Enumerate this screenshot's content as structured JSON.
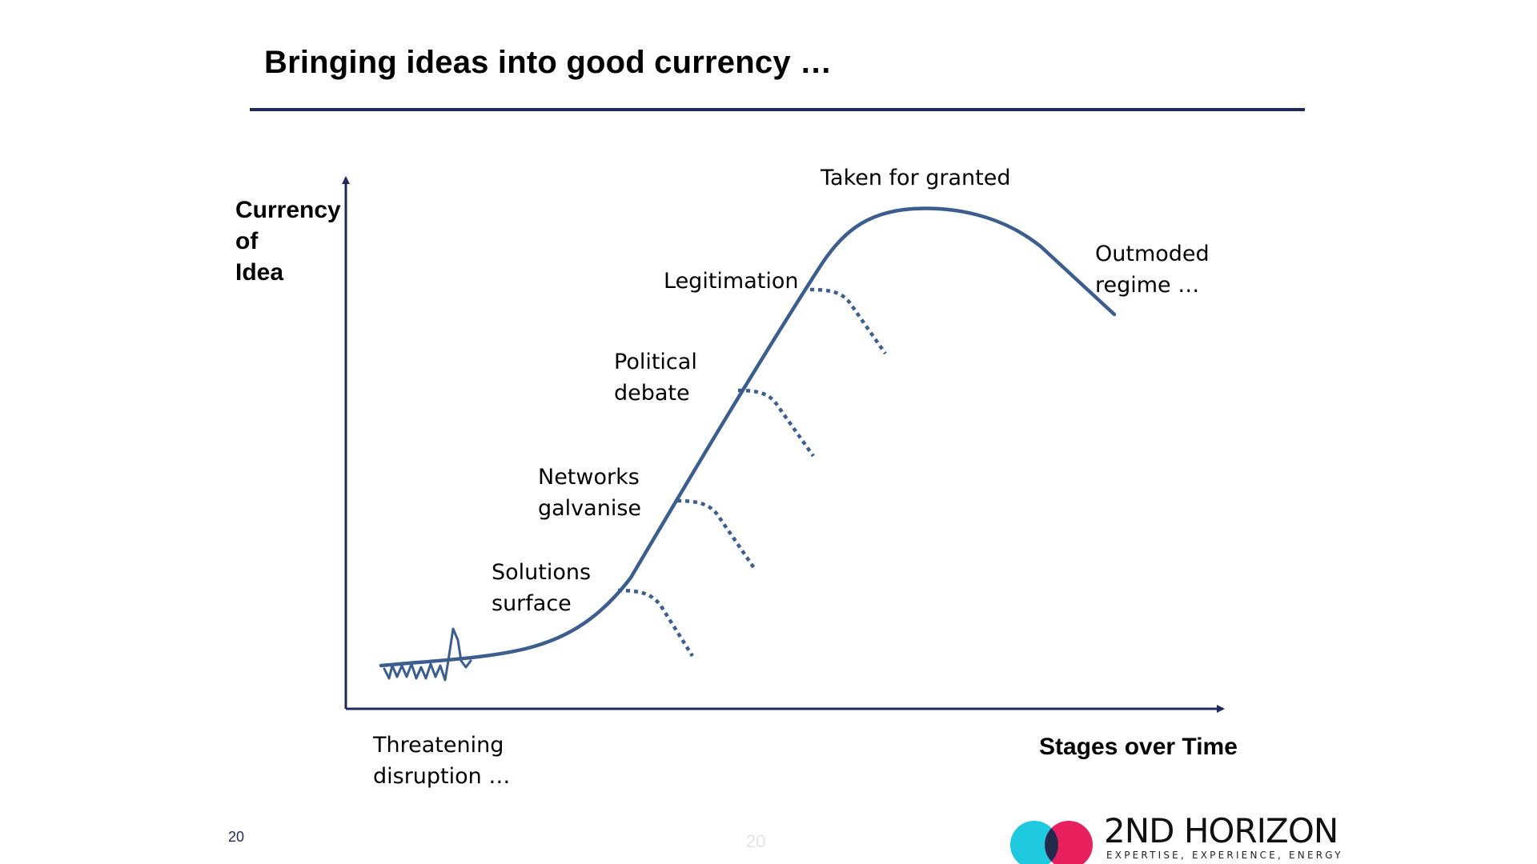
{
  "slide": {
    "title": "Bringing ideas into good currency …",
    "page_number": "20",
    "page_number_faint": "20"
  },
  "diagram": {
    "y_axis_label_lines": [
      "Currency",
      "of",
      "Idea"
    ],
    "x_axis_label": "Stages over Time",
    "stages": {
      "threatening": [
        "Threatening",
        "disruption …"
      ],
      "solutions": [
        "Solutions",
        "surface"
      ],
      "networks": [
        "Networks",
        "galvanise"
      ],
      "political": [
        "Political",
        "debate"
      ],
      "legitimation": "Legitimation",
      "taken": "Taken for granted",
      "outmoded": [
        "Outmoded",
        "regime …"
      ]
    },
    "colors": {
      "curve": "#3c5e8e",
      "axis": "#1f2a5c",
      "title_rule": "#1f2a5c"
    }
  },
  "logo": {
    "name": "2ND HORIZON",
    "tagline": "EXPERTISE, EXPERIENCE, ENERGY",
    "colors": {
      "circle_left": "#1fc9e0",
      "circle_right": "#e8205d",
      "overlap": "#232a4e"
    }
  }
}
